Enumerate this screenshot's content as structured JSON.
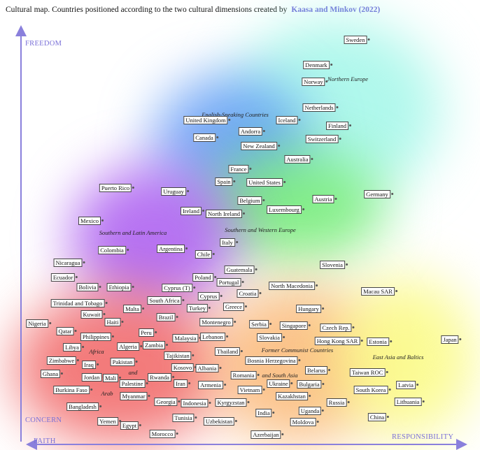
{
  "title": {
    "text": "Cultural map. Countries positioned according to the two cultural dimensions created by",
    "source": "Kaasa and Minkov (2022)"
  },
  "axes": {
    "top": "FREEDOM",
    "bottom": "CONCERN",
    "left": "FAITH",
    "right": "RESPONSIBILITY"
  },
  "groups": [
    "Northern Europe",
    "English-Speaking Countries",
    "Southern and Latin America",
    "Southern and Western Europe",
    "Former Communist Countries",
    "and South Asia",
    "East Asia and Baltics",
    "Africa",
    "and",
    "Arab"
  ],
  "countries": [
    "Sweden",
    "Denmark",
    "Norway",
    "Netherlands",
    "Finland",
    "Iceland",
    "Switzerland",
    "United Kingdom",
    "Canada",
    "Andorra",
    "New Zealand",
    "Australia",
    "France",
    "Spain",
    "United States",
    "Belgium",
    "Austria",
    "Germany",
    "Puerto Rico",
    "Uruguay",
    "Ireland",
    "North Ireland",
    "Luxembourg",
    "Mexico",
    "Italy",
    "Colombia",
    "Argentina",
    "Chile",
    "Nicaragua",
    "Slovenia",
    "Guatemala",
    "Ecuador",
    "Poland",
    "Portugal",
    "North Macedonia",
    "Bolivia",
    "Ethiopia",
    "Cyprus (T)",
    "Cyprus",
    "Croatia",
    "Macau SAR",
    "Trinidad and Tobago",
    "South Africa",
    "Malta",
    "Turkey",
    "Greece",
    "Hungary",
    "Kuwait",
    "Nigeria",
    "Brazil",
    "Haiti",
    "Montenegro",
    "Serbia",
    "Singapore",
    "Czech Rep.",
    "Qatar",
    "Peru",
    "Slovakia",
    "Philippines",
    "Malaysia",
    "Lebanon",
    "Hong Kong SAR",
    "Estonia",
    "Japan",
    "Libya",
    "Algeria",
    "Zambia",
    "Tajikistan",
    "Thailand",
    "Zimbabwe",
    "Iraq",
    "Pakistan",
    "Bosnia Herzegovina",
    "Kosovo",
    "Albania",
    "Belarus",
    "Ghana",
    "Jordan",
    "Mali",
    "Palestine",
    "Rwanda",
    "Romania",
    "Taiwan ROC",
    "Burkina Faso",
    "Iran",
    "Armenia",
    "Ukraine",
    "Bulgaria",
    "Latvia",
    "Myanmar",
    "Vietnam",
    "South Korea",
    "Georgia",
    "Indonesia",
    "Kyrgyzstan",
    "Kazakhstan",
    "Russia",
    "Lithuania",
    "Bangladesh",
    "India",
    "Uganda",
    "Yemen",
    "Egypt",
    "Tunisia",
    "Uzbekistan",
    "Moldova",
    "China",
    "Morocco",
    "Azerbaijan"
  ]
}
